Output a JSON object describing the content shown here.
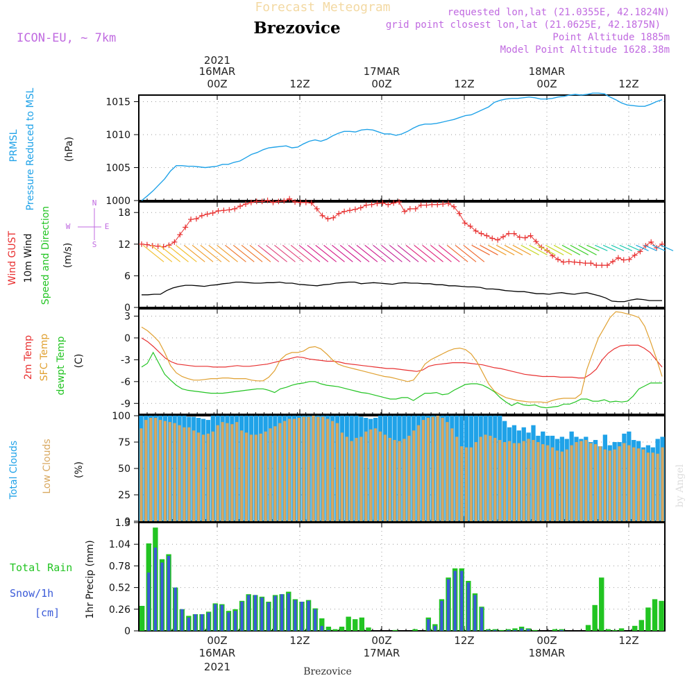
{
  "header": {
    "title": "Forecast Meteogram",
    "model": "ICON-EU, ~ 7km",
    "place": "Brezovice",
    "requested": "requested lon,lat (21.0355E, 42.1824N)",
    "gridpoint": "grid point closest lon,lat (21.0625E, 42.1875N)",
    "point_alt": "Point Altitude 1885m",
    "model_alt": "Model Point Altitude 1628.38m",
    "footer_place": "Brezovice",
    "watermark": "by Angel",
    "compass": [
      "N",
      "E",
      "S",
      "W"
    ]
  },
  "time_axis": {
    "major_top": [
      "00Z",
      "12Z",
      "00Z",
      "12Z",
      "00Z",
      "12Z"
    ],
    "dates": [
      "16MAR",
      "17MAR",
      "18MAR"
    ],
    "year": "2021"
  },
  "panels": {
    "pressure": {
      "label1": "PRMSL",
      "label2": "Pressure Reduced to MSL",
      "unit": "(hPa)",
      "color": "#1fa2e8"
    },
    "wind": {
      "label_gust": "Wind GUST",
      "label_10m": "10m Wind",
      "label_dir": "Speed and Direction",
      "unit": "(m/s)",
      "gust_color": "#e83030",
      "speed_color": "#000000"
    },
    "temp": {
      "label_t2m": "2m Temp",
      "label_sfc": "SFC Temp",
      "label_dew": "dewpt Temp",
      "unit": "(C)",
      "t2m_color": "#e83030",
      "sfc_color": "#e0a030",
      "dew_color": "#22c422"
    },
    "clouds": {
      "label_total": "Total Clouds",
      "label_low": "Low Clouds",
      "unit": "(%)",
      "total_color": "#1fa2e8",
      "low_color": "#d8a860"
    },
    "precip": {
      "label_rain": "Total Rain",
      "label_snow": "Snow/1h",
      "label_snow_unit": "[cm]",
      "unit": "1hr Precip (mm)",
      "rain_color": "#22c422",
      "snow_color": "#3a5ad8"
    }
  },
  "chart_data": [
    {
      "type": "line",
      "id": "pressure",
      "ylim": [
        1000,
        1016
      ],
      "yticks": [
        1000,
        1005,
        1010,
        1015
      ],
      "values": [
        1000.0,
        1000.7,
        1001.5,
        1002.4,
        1003.3,
        1004.5,
        1005.3,
        1005.3,
        1005.2,
        1005.2,
        1005.1,
        1005.0,
        1005.1,
        1005.2,
        1005.5,
        1005.5,
        1005.8,
        1006.0,
        1006.5,
        1007.0,
        1007.3,
        1007.7,
        1008.0,
        1008.1,
        1008.2,
        1008.3,
        1008.0,
        1008.1,
        1008.6,
        1009.0,
        1009.2,
        1009.0,
        1009.3,
        1009.8,
        1010.2,
        1010.5,
        1010.5,
        1010.4,
        1010.7,
        1010.8,
        1010.7,
        1010.4,
        1010.1,
        1010.1,
        1009.9,
        1010.1,
        1010.5,
        1011.0,
        1011.4,
        1011.6,
        1011.6,
        1011.7,
        1011.9,
        1012.1,
        1012.3,
        1012.6,
        1012.9,
        1013.0,
        1013.4,
        1013.8,
        1014.2,
        1014.9,
        1015.2,
        1015.4,
        1015.5,
        1015.5,
        1015.6,
        1015.7,
        1015.6,
        1015.4,
        1015.4,
        1015.5,
        1015.7,
        1015.8,
        1016.0,
        1016.1,
        1016.0,
        1016.1,
        1016.3,
        1016.3,
        1016.2,
        1015.7,
        1015.3,
        1014.8,
        1014.5,
        1014.4,
        1014.3,
        1014.3,
        1014.6,
        1015.0,
        1015.3
      ]
    },
    {
      "type": "line",
      "id": "wind",
      "ylim": [
        0,
        20
      ],
      "yticks": [
        0,
        6,
        12,
        18
      ],
      "gust": [
        12.0,
        11.9,
        11.7,
        11.6,
        11.5,
        11.8,
        12.4,
        13.8,
        15.2,
        16.7,
        16.8,
        17.4,
        17.7,
        17.9,
        18.3,
        18.4,
        18.5,
        18.7,
        19.2,
        19.6,
        19.9,
        20.1,
        20.1,
        20.3,
        19.9,
        20.1,
        20.2,
        20.6,
        20.0,
        19.9,
        19.9,
        19.8,
        18.7,
        17.4,
        16.8,
        17.0,
        17.8,
        18.2,
        18.4,
        18.6,
        18.9,
        19.4,
        19.5,
        19.7,
        19.8,
        19.5,
        19.8,
        20.0,
        18.2,
        18.7,
        18.7,
        19.4,
        19.4,
        19.5,
        19.5,
        19.6,
        19.7,
        19.1,
        17.8,
        16.0,
        15.4,
        14.5,
        14.0,
        13.6,
        13.1,
        12.8,
        13.4,
        14.0,
        14.0,
        13.3,
        13.2,
        13.6,
        12.5,
        11.4,
        10.8,
        9.8,
        9.1,
        8.6,
        8.7,
        8.6,
        8.5,
        8.4,
        8.4,
        8.0,
        8.0,
        8.0,
        8.7,
        9.4,
        9.0,
        9.1,
        9.9,
        10.6,
        11.7,
        12.4,
        11.3,
        12.0
      ],
      "speed": [
        2.4,
        2.4,
        2.5,
        2.5,
        3.2,
        3.7,
        4.0,
        4.2,
        4.2,
        4.1,
        4.0,
        4.2,
        4.3,
        4.5,
        4.6,
        4.8,
        4.8,
        4.7,
        4.6,
        4.6,
        4.7,
        4.7,
        4.8,
        4.6,
        4.6,
        4.4,
        4.3,
        4.2,
        4.1,
        4.3,
        4.4,
        4.6,
        4.7,
        4.8,
        4.8,
        4.5,
        4.6,
        4.7,
        4.6,
        4.5,
        4.4,
        4.6,
        4.7,
        4.6,
        4.6,
        4.5,
        4.5,
        4.3,
        4.3,
        4.1,
        4.1,
        4.0,
        3.9,
        3.9,
        3.8,
        3.5,
        3.5,
        3.4,
        3.2,
        3.1,
        3.0,
        3.0,
        2.8,
        2.6,
        2.6,
        2.5,
        2.7,
        2.8,
        2.6,
        2.5,
        2.7,
        2.8,
        2.5,
        2.2,
        1.8,
        1.2,
        1.1,
        1.1,
        1.4,
        1.6,
        1.5,
        1.3,
        1.3,
        1.3
      ]
    },
    {
      "type": "line",
      "id": "temperature",
      "ylim": [
        -10.5,
        4
      ],
      "yticks": [
        -9,
        -6,
        -3,
        0,
        3
      ],
      "t2m": [
        0.0,
        -0.5,
        -1.2,
        -2.0,
        -2.8,
        -3.3,
        -3.6,
        -3.7,
        -3.8,
        -3.9,
        -3.9,
        -3.9,
        -4.0,
        -4.0,
        -4.0,
        -3.9,
        -3.8,
        -3.9,
        -3.9,
        -3.8,
        -3.7,
        -3.6,
        -3.4,
        -3.2,
        -3.0,
        -2.8,
        -2.6,
        -2.7,
        -2.9,
        -3.0,
        -3.1,
        -3.2,
        -3.2,
        -3.3,
        -3.5,
        -3.6,
        -3.7,
        -3.8,
        -3.9,
        -4.0,
        -4.1,
        -4.2,
        -4.2,
        -4.3,
        -4.4,
        -4.5,
        -4.6,
        -4.4,
        -3.9,
        -3.7,
        -3.6,
        -3.5,
        -3.4,
        -3.4,
        -3.4,
        -3.5,
        -3.6,
        -3.7,
        -3.9,
        -4.1,
        -4.2,
        -4.4,
        -4.6,
        -4.8,
        -5.0,
        -5.1,
        -5.2,
        -5.3,
        -5.3,
        -5.3,
        -5.4,
        -5.4,
        -5.4,
        -5.5,
        -5.5,
        -5.0,
        -4.3,
        -3.0,
        -2.1,
        -1.5,
        -1.1,
        -1.0,
        -1.0,
        -1.0,
        -1.4,
        -2.0,
        -3.0,
        -4.0
      ],
      "sfc": [
        1.5,
        1.0,
        0.3,
        -0.5,
        -2.0,
        -3.8,
        -4.8,
        -5.3,
        -5.6,
        -5.8,
        -5.8,
        -5.7,
        -5.6,
        -5.6,
        -5.5,
        -5.5,
        -5.6,
        -5.6,
        -5.6,
        -5.8,
        -5.9,
        -5.9,
        -5.4,
        -4.5,
        -3.0,
        -2.3,
        -2.0,
        -2.0,
        -1.8,
        -1.3,
        -1.2,
        -1.5,
        -2.2,
        -3.0,
        -3.6,
        -3.9,
        -4.1,
        -4.3,
        -4.5,
        -4.7,
        -4.9,
        -5.1,
        -5.3,
        -5.4,
        -5.6,
        -5.8,
        -6.0,
        -5.8,
        -4.8,
        -3.6,
        -3.0,
        -2.6,
        -2.2,
        -1.8,
        -1.5,
        -1.4,
        -1.6,
        -2.2,
        -3.3,
        -4.8,
        -6.3,
        -7.3,
        -7.8,
        -8.2,
        -8.4,
        -8.6,
        -8.7,
        -8.8,
        -8.8,
        -8.8,
        -8.9,
        -8.6,
        -8.4,
        -8.3,
        -8.3,
        -8.3,
        -7.7,
        -4.3,
        -2.1,
        0.0,
        1.4,
        2.8,
        3.6,
        3.5,
        3.3,
        3.1,
        2.8,
        1.6,
        -0.5,
        -2.8,
        -5.3
      ],
      "dew": [
        -4.0,
        -3.5,
        -2.0,
        -3.5,
        -5.0,
        -5.8,
        -6.5,
        -7.0,
        -7.2,
        -7.3,
        -7.4,
        -7.5,
        -7.6,
        -7.6,
        -7.6,
        -7.5,
        -7.4,
        -7.3,
        -7.2,
        -7.1,
        -7.0,
        -7.0,
        -7.2,
        -7.5,
        -7.0,
        -6.8,
        -6.5,
        -6.3,
        -6.2,
        -6.0,
        -6.0,
        -6.3,
        -6.5,
        -6.6,
        -6.7,
        -6.9,
        -7.1,
        -7.3,
        -7.5,
        -7.6,
        -7.8,
        -8.0,
        -8.2,
        -8.4,
        -8.4,
        -8.2,
        -8.2,
        -8.6,
        -8.1,
        -7.6,
        -7.6,
        -7.5,
        -7.8,
        -7.7,
        -7.2,
        -6.8,
        -6.4,
        -6.3,
        -6.3,
        -6.5,
        -6.9,
        -7.4,
        -8.2,
        -8.8,
        -9.3,
        -8.9,
        -9.2,
        -9.3,
        -9.2,
        -9.5,
        -9.6,
        -9.5,
        -9.4,
        -9.1,
        -9.1,
        -8.8,
        -8.4,
        -8.4,
        -8.7,
        -8.7,
        -8.5,
        -8.8,
        -8.7,
        -8.8,
        -8.7,
        -8.0,
        -7.0,
        -6.6,
        -6.2,
        -6.2,
        -6.2
      ]
    },
    {
      "type": "bar",
      "id": "clouds",
      "ylim": [
        0,
        100
      ],
      "yticks": [
        0,
        25,
        50,
        75,
        100
      ],
      "total": [
        100,
        100,
        100,
        100,
        100,
        100,
        100,
        100,
        100,
        100,
        99,
        99,
        98,
        97,
        96,
        100,
        100,
        100,
        100,
        100,
        100,
        100,
        100,
        100,
        100,
        100,
        100,
        100,
        100,
        100,
        100,
        100,
        100,
        100,
        100,
        100,
        100,
        100,
        100,
        100,
        100,
        100,
        100,
        100,
        100,
        100,
        99,
        98,
        97,
        98,
        100,
        100,
        100,
        100,
        100,
        100,
        100,
        100,
        100,
        100,
        100,
        100,
        100,
        100,
        100,
        100,
        100,
        100,
        100,
        100,
        100,
        100,
        100,
        100,
        100,
        100,
        95,
        89,
        91,
        86,
        89,
        84,
        91,
        81,
        85,
        81,
        81,
        78,
        80,
        78,
        85,
        80,
        78,
        80,
        75,
        77,
        71,
        82,
        72,
        75,
        75,
        83,
        85,
        77,
        76,
        70,
        72,
        70,
        78,
        80
      ],
      "low": [
        88,
        96,
        98,
        98,
        96,
        95,
        94,
        93,
        91,
        89,
        89,
        86,
        84,
        82,
        83,
        85,
        91,
        94,
        93,
        92,
        94,
        86,
        84,
        82,
        82,
        83,
        85,
        88,
        90,
        93,
        95,
        97,
        97,
        98,
        99,
        99,
        100,
        99,
        99,
        97,
        95,
        93,
        84,
        80,
        76,
        79,
        80,
        85,
        87,
        88,
        85,
        82,
        79,
        77,
        76,
        78,
        81,
        86,
        91,
        96,
        98,
        99,
        100,
        98,
        94,
        88,
        80,
        71,
        70,
        70,
        75,
        80,
        82,
        81,
        79,
        77,
        75,
        76,
        74,
        74,
        76,
        78,
        77,
        75,
        73,
        72,
        70,
        67,
        66,
        68,
        72,
        75,
        76,
        77,
        74,
        73,
        71,
        68,
        67,
        68,
        71,
        74,
        72,
        70,
        69,
        68,
        65,
        65,
        64,
        70
      ]
    },
    {
      "type": "bar",
      "id": "precipitation",
      "ylim": [
        0,
        1.3
      ],
      "yticks": [
        0,
        0.26,
        0.52,
        0.78,
        1.04,
        1.3
      ],
      "rain": [
        0.3,
        1.05,
        1.24,
        0.86,
        0.92,
        0.52,
        0.26,
        0.18,
        0.2,
        0.2,
        0.23,
        0.33,
        0.32,
        0.24,
        0.26,
        0.36,
        0.44,
        0.43,
        0.41,
        0.35,
        0.43,
        0.44,
        0.47,
        0.38,
        0.35,
        0.37,
        0.27,
        0.15,
        0.05,
        0.02,
        0.05,
        0.17,
        0.14,
        0.16,
        0.04,
        0.0,
        0.0,
        0.0,
        0.01,
        0.0,
        0.0,
        0.02,
        0.0,
        0.16,
        0.08,
        0.38,
        0.64,
        0.75,
        0.75,
        0.6,
        0.45,
        0.29,
        0.02,
        0.02,
        0.01,
        0.02,
        0.03,
        0.05,
        0.03,
        0.01,
        0.0,
        0.0,
        0.02,
        0.02,
        0.0,
        0.0,
        0.0,
        0.07,
        0.31,
        0.64,
        0.02,
        0.01,
        0.03,
        0.0,
        0.06,
        0.13,
        0.28,
        0.38,
        0.36
      ],
      "snow": [
        0.0,
        0.7,
        1.0,
        0.82,
        0.9,
        0.52,
        0.26,
        0.16,
        0.2,
        0.2,
        0.22,
        0.32,
        0.31,
        0.22,
        0.24,
        0.35,
        0.43,
        0.43,
        0.4,
        0.34,
        0.42,
        0.44,
        0.45,
        0.37,
        0.35,
        0.36,
        0.26,
        0.06,
        0.01,
        0.0,
        0.0,
        0.0,
        0.0,
        0.0,
        0.0,
        0.0,
        0.0,
        0.0,
        0.0,
        0.0,
        0.0,
        0.0,
        0.0,
        0.14,
        0.06,
        0.36,
        0.62,
        0.72,
        0.72,
        0.58,
        0.43,
        0.28,
        0.01,
        0.01,
        0.0,
        0.01,
        0.01,
        0.03,
        0.02,
        0.0,
        0.0,
        0.0,
        0.0,
        0.01,
        0.0,
        0.0,
        0.0,
        0.0,
        0.0,
        0.0,
        0.0,
        0.0,
        0.0,
        0.0,
        0.0,
        0.0,
        0.0,
        0.0,
        0.0
      ]
    }
  ]
}
